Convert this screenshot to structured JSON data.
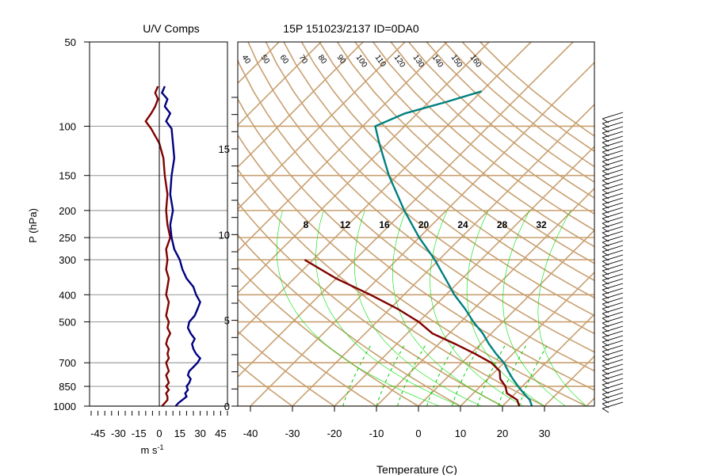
{
  "chart_data": [
    {
      "type": "line",
      "title": "U/V Comps",
      "xlabel": "m s",
      "xlabel_exponent": "-1",
      "ylabel": "P (hPa)",
      "y_scale": "log",
      "y_ticks": [
        50,
        100,
        150,
        200,
        250,
        300,
        400,
        500,
        700,
        850,
        1000
      ],
      "x_ticks": [
        -45,
        -30,
        -15,
        0,
        15,
        30,
        45
      ],
      "xlim": [
        -50,
        50
      ],
      "ylim": [
        1000,
        50
      ],
      "series": [
        {
          "component": "u",
          "color": "#800000",
          "points": [
            [
              2,
              1000
            ],
            [
              4,
              975
            ],
            [
              6,
              950
            ],
            [
              6,
              925
            ],
            [
              5,
              900
            ],
            [
              7,
              875
            ],
            [
              5,
              850
            ],
            [
              7,
              825
            ],
            [
              6,
              800
            ],
            [
              5,
              775
            ],
            [
              7,
              750
            ],
            [
              6,
              725
            ],
            [
              5,
              700
            ],
            [
              7,
              675
            ],
            [
              6,
              650
            ],
            [
              7,
              625
            ],
            [
              5,
              600
            ],
            [
              6,
              575
            ],
            [
              8,
              550
            ],
            [
              6,
              525
            ],
            [
              7,
              500
            ],
            [
              5,
              475
            ],
            [
              6,
              450
            ],
            [
              7,
              425
            ],
            [
              5,
              400
            ],
            [
              6,
              375
            ],
            [
              7,
              350
            ],
            [
              5,
              325
            ],
            [
              6,
              300
            ],
            [
              5,
              275
            ],
            [
              8,
              250
            ],
            [
              6,
              225
            ],
            [
              5,
              200
            ],
            [
              6,
              175
            ],
            [
              4,
              150
            ],
            [
              3,
              130
            ],
            [
              0,
              115
            ],
            [
              -6,
              102
            ],
            [
              -10,
              96
            ],
            [
              -6,
              90
            ],
            [
              -3,
              85
            ],
            [
              -1,
              80
            ],
            [
              -3,
              76
            ],
            [
              -1,
              72
            ]
          ]
        },
        {
          "component": "v",
          "color": "#000080",
          "points": [
            [
              12,
              1000
            ],
            [
              14,
              975
            ],
            [
              17,
              950
            ],
            [
              20,
              925
            ],
            [
              19,
              900
            ],
            [
              21,
              875
            ],
            [
              20,
              850
            ],
            [
              22,
              825
            ],
            [
              23,
              800
            ],
            [
              21,
              775
            ],
            [
              22,
              750
            ],
            [
              25,
              725
            ],
            [
              28,
              700
            ],
            [
              30,
              675
            ],
            [
              27,
              650
            ],
            [
              25,
              625
            ],
            [
              24,
              600
            ],
            [
              26,
              575
            ],
            [
              23,
              550
            ],
            [
              21,
              525
            ],
            [
              22,
              500
            ],
            [
              26,
              475
            ],
            [
              28,
              450
            ],
            [
              30,
              425
            ],
            [
              27,
              400
            ],
            [
              25,
              375
            ],
            [
              20,
              350
            ],
            [
              17,
              325
            ],
            [
              15,
              300
            ],
            [
              11,
              275
            ],
            [
              9,
              250
            ],
            [
              8,
              225
            ],
            [
              10,
              200
            ],
            [
              8,
              175
            ],
            [
              9,
              150
            ],
            [
              11,
              130
            ],
            [
              10,
              115
            ],
            [
              9,
              102
            ],
            [
              5,
              96
            ],
            [
              8,
              90
            ],
            [
              4,
              85
            ],
            [
              6,
              80
            ],
            [
              2,
              76
            ],
            [
              4,
              72
            ]
          ]
        }
      ]
    },
    {
      "type": "line",
      "title": "15P 151023/2137 ID=0DA0",
      "xlabel": "Temperature (C)",
      "x_ticks": [
        -40,
        -30,
        -20,
        -10,
        0,
        10,
        20,
        30
      ],
      "height_ticks_km": [
        0,
        5,
        10,
        15
      ],
      "isotherm_labels": [
        40,
        50,
        60,
        70,
        80,
        90,
        100,
        110,
        120,
        130,
        140,
        150,
        160
      ],
      "mixing_ratio_labels": [
        8,
        12,
        16,
        20,
        24,
        28,
        32
      ],
      "series": [
        {
          "name": "",
          "variable": "temperature",
          "color": "#008080",
          "points": [
            [
              27,
              1000
            ],
            [
              25,
              950
            ],
            [
              22,
              900
            ],
            [
              19,
              850
            ],
            [
              16,
              800
            ],
            [
              13,
              750
            ],
            [
              10,
              700
            ],
            [
              6,
              650
            ],
            [
              2,
              600
            ],
            [
              -2,
              550
            ],
            [
              -7,
              500
            ],
            [
              -12,
              450
            ],
            [
              -18,
              400
            ],
            [
              -24,
              350
            ],
            [
              -31,
              300
            ],
            [
              -40,
              250
            ],
            [
              -50,
              200
            ],
            [
              -62,
              150
            ],
            [
              -72,
              115
            ],
            [
              -77,
              100
            ],
            [
              -73,
              90
            ],
            [
              -66,
              82
            ],
            [
              -60,
              75
            ]
          ]
        },
        {
          "name": "",
          "variable": "dew point",
          "color": "#800000",
          "points": [
            [
              24,
              1000
            ],
            [
              22,
              950
            ],
            [
              18,
              900
            ],
            [
              16,
              850
            ],
            [
              13,
              800
            ],
            [
              11,
              750
            ],
            [
              7,
              700
            ],
            [
              1,
              650
            ],
            [
              -6,
              600
            ],
            [
              -14,
              550
            ],
            [
              -20,
              500
            ],
            [
              -28,
              450
            ],
            [
              -38,
              400
            ],
            [
              -50,
              350
            ],
            [
              -62,
              300
            ]
          ]
        }
      ]
    }
  ]
}
